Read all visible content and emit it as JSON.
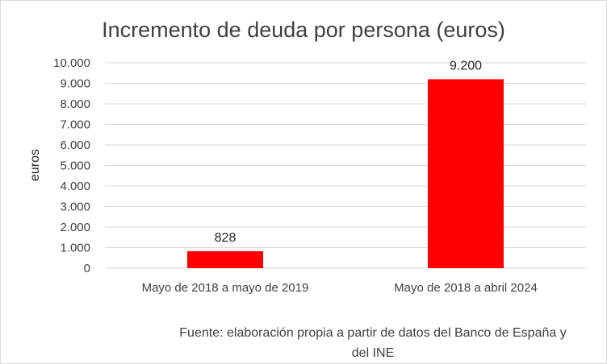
{
  "chart_data": {
    "type": "bar",
    "title": "Incremento de deuda por persona (euros)",
    "xlabel": "",
    "ylabel": "euros",
    "categories": [
      "Mayo de 2018 a mayo de 2019",
      "Mayo de 2018 a abril 2024"
    ],
    "values": [
      828,
      9200
    ],
    "data_labels": [
      "828",
      "9.200"
    ],
    "ylim": [
      0,
      10000
    ],
    "y_ticks": [
      0,
      1000,
      2000,
      3000,
      4000,
      5000,
      6000,
      7000,
      8000,
      9000,
      10000
    ],
    "y_tick_labels": [
      "0",
      "1.000",
      "2.000",
      "3.000",
      "4.000",
      "5.000",
      "6.000",
      "7.000",
      "8.000",
      "9.000",
      "10.000"
    ],
    "grid": true,
    "bar_color": "#ff0000",
    "source_lines": [
      "Fuente: elaboración propia a partir de datos del Banco de España y",
      "del INE"
    ]
  }
}
